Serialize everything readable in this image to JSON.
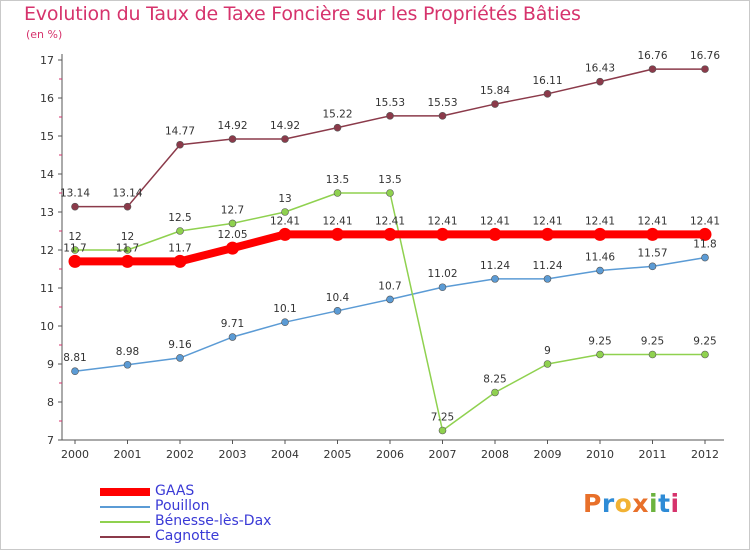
{
  "title": "Evolution du Taux de Taxe Foncière sur les Propriétés Bâties",
  "subtitle": "(en %)",
  "logo": {
    "text": "Proxiti",
    "colors": [
      "#e8702a",
      "#2e8bd6",
      "#f2b233",
      "#e8702a",
      "#6cb33f",
      "#2e8bd6",
      "#d6336c"
    ]
  },
  "chart_data": {
    "type": "line",
    "x": [
      "2000",
      "2001",
      "2002",
      "2003",
      "2004",
      "2005",
      "2006",
      "2007",
      "2008",
      "2009",
      "2010",
      "2011",
      "2012"
    ],
    "ylim": [
      7,
      17
    ],
    "yticks": [
      "7",
      "8",
      "9",
      "10",
      "11",
      "12",
      "13",
      "14",
      "15",
      "16",
      "17"
    ],
    "grid": false,
    "legend_position": "bottom-left",
    "series": [
      {
        "name": "GAAS",
        "color": "#ff0000",
        "values": [
          11.7,
          11.7,
          11.7,
          12.05,
          12.41,
          12.41,
          12.41,
          12.41,
          12.41,
          12.41,
          12.41,
          12.41,
          12.41
        ],
        "labels": [
          "11.7",
          "11.7",
          "11.7",
          "12.05",
          "12.41",
          "12.41",
          "12.41",
          "12.41",
          "12.41",
          "12.41",
          "12.41",
          "12.41",
          "12.41"
        ]
      },
      {
        "name": "Pouillon",
        "color": "#5b9bd5",
        "values": [
          8.81,
          8.98,
          9.16,
          9.71,
          10.1,
          10.4,
          10.7,
          11.02,
          11.24,
          11.24,
          11.46,
          11.57,
          11.8
        ],
        "labels": [
          "8.81",
          "8.98",
          "9.16",
          "9.71",
          "10.1",
          "10.4",
          "10.7",
          "11.02",
          "11.24",
          "11.24",
          "11.46",
          "11.57",
          "11.8"
        ]
      },
      {
        "name": "Bénesse-lès-Dax",
        "color": "#8fd14f",
        "values": [
          12,
          12,
          12.5,
          12.7,
          13,
          13.5,
          13.5,
          7.25,
          8.25,
          9,
          9.25,
          9.25,
          9.25
        ],
        "labels": [
          "12",
          "12",
          "12.5",
          "12.7",
          "13",
          "13.5",
          "13.5",
          "7.25",
          "8.25",
          "9",
          "9.25",
          "9.25",
          "9.25"
        ]
      },
      {
        "name": "Cagnotte",
        "color": "#8b3a4a",
        "values": [
          13.14,
          13.14,
          14.77,
          14.92,
          14.92,
          15.22,
          15.53,
          15.53,
          15.84,
          16.11,
          16.43,
          16.76,
          16.76
        ],
        "labels": [
          "13.14",
          "13.14",
          "14.77",
          "14.92",
          "14.92",
          "15.22",
          "15.53",
          "15.53",
          "15.84",
          "16.11",
          "16.43",
          "16.76",
          "16.76"
        ]
      }
    ]
  }
}
